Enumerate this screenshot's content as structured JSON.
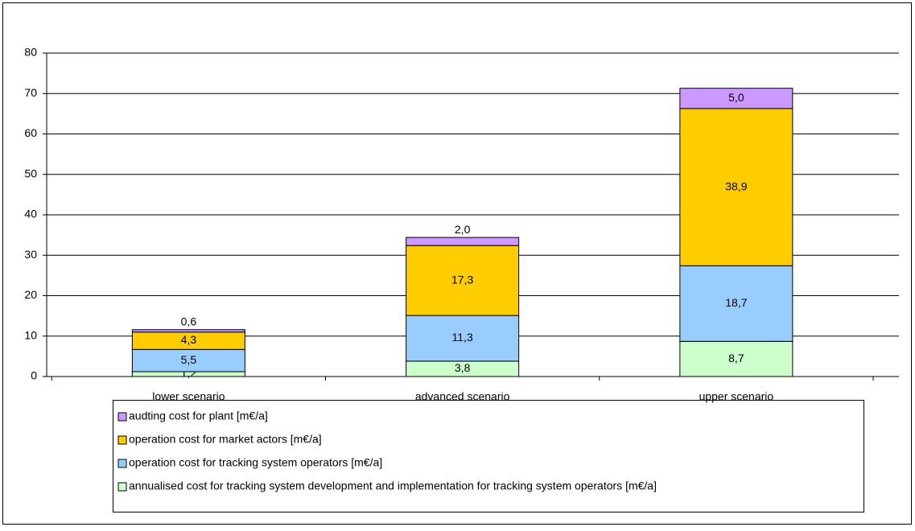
{
  "chart_data": {
    "type": "stacked_bar",
    "categories": [
      "lower scenario",
      "advanced scenario",
      "upper scenario"
    ],
    "series": [
      {
        "name": "annualised cost for tracking system development and implementation for tracking system operators [m€/a]",
        "color": "#ccffcc",
        "values": [
          1.2,
          3.8,
          8.7
        ],
        "value_labels": [
          "1,2",
          "3,8",
          "8,7"
        ]
      },
      {
        "name": "operation cost for tracking system operators [m€/a]",
        "color": "#99ccff",
        "values": [
          5.5,
          11.3,
          18.7
        ],
        "value_labels": [
          "5,5",
          "11,3",
          "18,7"
        ]
      },
      {
        "name": "operation cost for market actors [m€/a]",
        "color": "#ffcc00",
        "values": [
          4.3,
          17.3,
          38.9
        ],
        "value_labels": [
          "4,3",
          "17,3",
          "38,9"
        ]
      },
      {
        "name": "audting cost for plant [m€/a]",
        "color": "#cc99ff",
        "values": [
          0.6,
          2.0,
          5.0
        ],
        "value_labels": [
          "0,6",
          "2,0",
          "5,0"
        ]
      }
    ],
    "ylim": [
      0,
      80
    ],
    "yticks": [
      0,
      10,
      20,
      30,
      40,
      50,
      60,
      70,
      80
    ],
    "grid": true
  }
}
